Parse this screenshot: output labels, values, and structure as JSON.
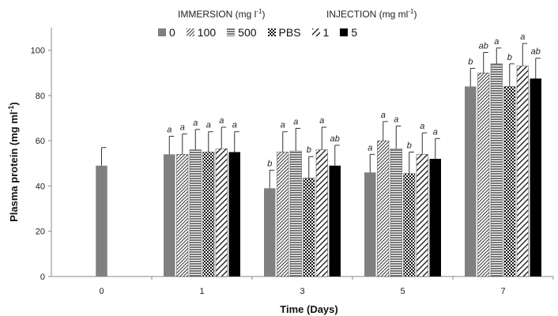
{
  "chart_data": {
    "type": "bar",
    "legend_groups": [
      {
        "title": "IMMERSION (mg l",
        "title_sup": "-1",
        "title_end": ")"
      },
      {
        "title": "INJECTION (mg ml",
        "title_sup": "-1",
        "title_end": ")"
      }
    ],
    "xlabel": "Time (Days)",
    "ylabel_base": "Plasma protein (mg ml",
    "ylabel_sup": "-1",
    "ylabel_end": ")",
    "ylim": [
      0,
      110
    ],
    "yticks": [
      0,
      20,
      40,
      60,
      80,
      100
    ],
    "categories": [
      "0",
      "1",
      "3",
      "5",
      "7"
    ],
    "series": [
      {
        "name": "0",
        "pattern": "solid-gray",
        "color": "#808080",
        "values": [
          49,
          54,
          39,
          46,
          84
        ],
        "errors": [
          8,
          8,
          8,
          8,
          8
        ],
        "labels": [
          "",
          "a",
          "b",
          "a",
          "b"
        ]
      },
      {
        "name": "100",
        "pattern": "diag-dense",
        "color": "#333333",
        "values": [
          null,
          54,
          55,
          60,
          90
        ],
        "errors": [
          null,
          9,
          9,
          8.5,
          9
        ],
        "labels": [
          "",
          "a",
          "a",
          "a",
          "ab"
        ]
      },
      {
        "name": "500",
        "pattern": "horizontal-lines",
        "color": "#666666",
        "values": [
          null,
          56,
          55.5,
          56.5,
          94
        ],
        "errors": [
          null,
          9,
          10,
          10,
          7
        ],
        "labels": [
          "",
          "a",
          "a",
          "a",
          "a"
        ]
      },
      {
        "name": "PBS",
        "pattern": "checker",
        "color": "#222222",
        "values": [
          null,
          55,
          43.5,
          45.5,
          84
        ],
        "errors": [
          null,
          9,
          9.5,
          9.5,
          10
        ],
        "labels": [
          "",
          "a",
          "b",
          "b",
          "b"
        ]
      },
      {
        "name": "1",
        "pattern": "diag-wide",
        "color": "#222222",
        "values": [
          null,
          56.5,
          56,
          54,
          93
        ],
        "errors": [
          null,
          9.5,
          10,
          9.5,
          10
        ],
        "labels": [
          "",
          "a",
          "a",
          "a",
          "a"
        ]
      },
      {
        "name": "5",
        "pattern": "solid-black",
        "color": "#000000",
        "values": [
          null,
          55,
          49,
          52,
          87.5
        ],
        "errors": [
          null,
          9,
          9,
          9,
          9
        ],
        "labels": [
          "",
          "a",
          "ab",
          "a",
          "ab"
        ]
      }
    ]
  }
}
